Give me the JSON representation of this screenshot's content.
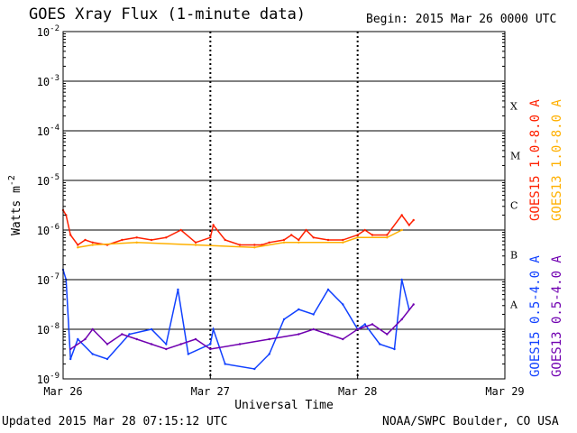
{
  "header": {
    "title": "GOES Xray Flux (1-minute data)",
    "begin": "Begin:  2015 Mar 26 0000 UTC"
  },
  "footer": {
    "updated": "Updated 2015 Mar 28 07:15:12 UTC",
    "credit": "NOAA/SWPC Boulder, CO USA"
  },
  "chart_data": {
    "type": "line",
    "title": "GOES Xray Flux (1-minute data)",
    "xlabel": "Universal Time",
    "ylabel": "Watts m",
    "ylabel_exponent": "-2",
    "x_unit": "days since 2015 Mar 26 0000 UTC",
    "xlim": [
      0,
      3
    ],
    "ylim_log10": [
      -9,
      -2
    ],
    "y_scale": "log",
    "grid": "horizontal lines at each decade, dashed day separators",
    "x_ticks": [
      {
        "value": 0,
        "label": "Mar 26"
      },
      {
        "value": 1,
        "label": "Mar 27"
      },
      {
        "value": 2,
        "label": "Mar 28"
      },
      {
        "value": 3,
        "label": "Mar 29"
      }
    ],
    "y_ticks": [
      {
        "exp": -2,
        "base": "10",
        "sup": "-2"
      },
      {
        "exp": -3,
        "base": "10",
        "sup": "-3"
      },
      {
        "exp": -4,
        "base": "10",
        "sup": "-4"
      },
      {
        "exp": -5,
        "base": "10",
        "sup": "-5"
      },
      {
        "exp": -6,
        "base": "10",
        "sup": "-6"
      },
      {
        "exp": -7,
        "base": "10",
        "sup": "-7"
      },
      {
        "exp": -8,
        "base": "10",
        "sup": "-8"
      },
      {
        "exp": -9,
        "base": "10",
        "sup": "-9"
      }
    ],
    "flare_classes": [
      {
        "label": "X",
        "exp": -3.5
      },
      {
        "label": "M",
        "exp": -4.5
      },
      {
        "label": "C",
        "exp": -5.5
      },
      {
        "label": "B",
        "exp": -6.5
      },
      {
        "label": "A",
        "exp": -7.5
      }
    ],
    "legend_placement": "right, vertical",
    "legend": [
      {
        "label": "GOES15 1.0-8.0 A",
        "color": "#ff2000"
      },
      {
        "label": "GOES13 1.0-8.0 A",
        "color": "#ffb000"
      },
      {
        "label": "GOES15 0.5-4.0 A",
        "color": "#1040ff"
      },
      {
        "label": "GOES13 0.5-4.0 A",
        "color": "#7000b0"
      }
    ],
    "series": [
      {
        "name": "GOES15 1.0-8.0 A",
        "color": "#ff2000",
        "points": [
          [
            0,
            -5.6
          ],
          [
            0.02,
            -5.7
          ],
          [
            0.05,
            -6.1
          ],
          [
            0.1,
            -6.3
          ],
          [
            0.15,
            -6.2
          ],
          [
            0.2,
            -6.25
          ],
          [
            0.3,
            -6.3
          ],
          [
            0.4,
            -6.2
          ],
          [
            0.5,
            -6.15
          ],
          [
            0.6,
            -6.2
          ],
          [
            0.7,
            -6.15
          ],
          [
            0.8,
            -6.0
          ],
          [
            0.9,
            -6.25
          ],
          [
            1.0,
            -6.15
          ],
          [
            1.02,
            -5.9
          ],
          [
            1.1,
            -6.2
          ],
          [
            1.2,
            -6.3
          ],
          [
            1.3,
            -6.3
          ],
          [
            1.35,
            -6.3
          ],
          [
            1.4,
            -6.25
          ],
          [
            1.5,
            -6.2
          ],
          [
            1.55,
            -6.1
          ],
          [
            1.6,
            -6.2
          ],
          [
            1.65,
            -6.0
          ],
          [
            1.7,
            -6.15
          ],
          [
            1.8,
            -6.2
          ],
          [
            1.9,
            -6.2
          ],
          [
            2.0,
            -6.1
          ],
          [
            2.05,
            -6.0
          ],
          [
            2.1,
            -6.1
          ],
          [
            2.2,
            -6.1
          ],
          [
            2.3,
            -5.7
          ],
          [
            2.35,
            -5.9
          ],
          [
            2.38,
            -5.8
          ]
        ]
      },
      {
        "name": "GOES13 1.0-8.0 A",
        "color": "#ffb000",
        "points": [
          [
            0.1,
            -6.35
          ],
          [
            0.2,
            -6.3
          ],
          [
            0.5,
            -6.25
          ],
          [
            0.9,
            -6.3
          ],
          [
            1.3,
            -6.35
          ],
          [
            1.5,
            -6.25
          ],
          [
            1.6,
            -6.25
          ],
          [
            1.9,
            -6.25
          ],
          [
            2.0,
            -6.15
          ],
          [
            2.2,
            -6.15
          ],
          [
            2.3,
            -6.0
          ]
        ]
      },
      {
        "name": "GOES15 0.5-4.0 A",
        "color": "#1040ff",
        "points": [
          [
            0,
            -6.8
          ],
          [
            0.02,
            -7.0
          ],
          [
            0.05,
            -8.6
          ],
          [
            0.1,
            -8.2
          ],
          [
            0.2,
            -8.5
          ],
          [
            0.3,
            -8.6
          ],
          [
            0.45,
            -8.1
          ],
          [
            0.6,
            -8.0
          ],
          [
            0.7,
            -8.3
          ],
          [
            0.78,
            -7.2
          ],
          [
            0.85,
            -8.5
          ],
          [
            1.0,
            -8.3
          ],
          [
            1.02,
            -8.0
          ],
          [
            1.1,
            -8.7
          ],
          [
            1.3,
            -8.8
          ],
          [
            1.4,
            -8.5
          ],
          [
            1.5,
            -7.8
          ],
          [
            1.6,
            -7.6
          ],
          [
            1.7,
            -7.7
          ],
          [
            1.8,
            -7.2
          ],
          [
            1.9,
            -7.5
          ],
          [
            2.0,
            -8.0
          ],
          [
            2.05,
            -7.9
          ],
          [
            2.15,
            -8.3
          ],
          [
            2.25,
            -8.4
          ],
          [
            2.3,
            -7.0
          ],
          [
            2.35,
            -7.6
          ]
        ]
      },
      {
        "name": "GOES13 0.5-4.0 A",
        "color": "#7000b0",
        "points": [
          [
            0.05,
            -8.4
          ],
          [
            0.15,
            -8.2
          ],
          [
            0.2,
            -8.0
          ],
          [
            0.3,
            -8.3
          ],
          [
            0.4,
            -8.1
          ],
          [
            0.5,
            -8.2
          ],
          [
            0.6,
            -8.3
          ],
          [
            0.7,
            -8.4
          ],
          [
            0.8,
            -8.3
          ],
          [
            0.9,
            -8.2
          ],
          [
            1.0,
            -8.4
          ],
          [
            1.2,
            -8.3
          ],
          [
            1.4,
            -8.2
          ],
          [
            1.6,
            -8.1
          ],
          [
            1.7,
            -8.0
          ],
          [
            1.8,
            -8.1
          ],
          [
            1.9,
            -8.2
          ],
          [
            2.0,
            -8.0
          ],
          [
            2.1,
            -7.9
          ],
          [
            2.2,
            -8.1
          ],
          [
            2.3,
            -7.8
          ],
          [
            2.38,
            -7.5
          ]
        ]
      }
    ]
  }
}
